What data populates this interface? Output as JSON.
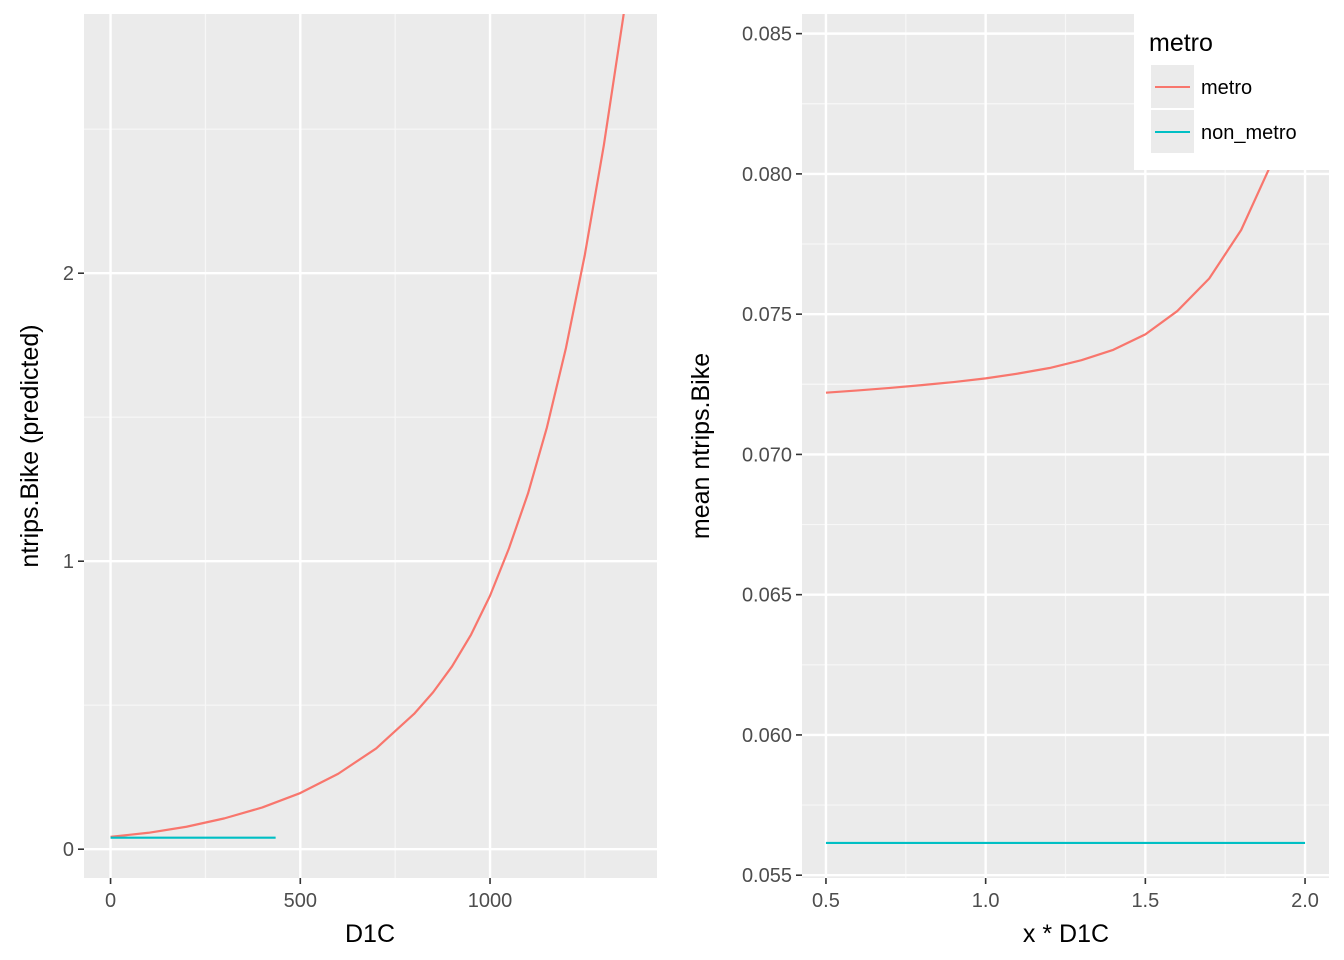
{
  "chart_data": [
    {
      "type": "line",
      "xlabel": "D1C",
      "ylabel": "ntrips.Bike (predicted)",
      "xlim": [
        -70,
        1440
      ],
      "ylim": [
        -0.1,
        2.9
      ],
      "x_ticks": [
        0,
        500,
        1000
      ],
      "x_tick_labels": [
        "0",
        "500",
        "1000"
      ],
      "y_ticks": [
        0,
        1,
        2
      ],
      "y_tick_labels": [
        "0",
        "1",
        "2"
      ],
      "grid": true,
      "series": [
        {
          "name": "metro",
          "color": "#F8766D",
          "x": [
            0,
            100,
            200,
            300,
            400,
            500,
            600,
            700,
            800,
            850,
            900,
            950,
            1000,
            1050,
            1100,
            1150,
            1200,
            1250,
            1300,
            1350,
            1370
          ],
          "y": [
            0.043,
            0.057,
            0.078,
            0.107,
            0.145,
            0.195,
            0.262,
            0.35,
            0.47,
            0.545,
            0.635,
            0.745,
            0.88,
            1.045,
            1.235,
            1.465,
            1.74,
            2.065,
            2.445,
            2.88,
            3.06
          ]
        },
        {
          "name": "non_metro",
          "color": "#00BFC4",
          "x": [
            0,
            435
          ],
          "y": [
            0.04,
            0.04
          ]
        }
      ]
    },
    {
      "type": "line",
      "xlabel": "x * D1C",
      "ylabel": "mean ntrips.Bike",
      "xlim": [
        0.425,
        2.075
      ],
      "ylim": [
        0.0549,
        0.0857
      ],
      "x_ticks": [
        0.5,
        1.0,
        1.5,
        2.0
      ],
      "x_tick_labels": [
        "0.5",
        "1.0",
        "1.5",
        "2.0"
      ],
      "y_ticks": [
        0.055,
        0.06,
        0.065,
        0.07,
        0.075,
        0.08,
        0.085
      ],
      "y_tick_labels": [
        "0.055",
        "0.060",
        "0.065",
        "0.070",
        "0.075",
        "0.080",
        "0.085"
      ],
      "grid": true,
      "series": [
        {
          "name": "metro",
          "color": "#F8766D",
          "x": [
            0.5,
            0.6,
            0.7,
            0.8,
            0.9,
            1.0,
            1.1,
            1.2,
            1.3,
            1.4,
            1.5,
            1.6,
            1.7,
            1.8,
            1.9,
            2.0
          ],
          "y": [
            0.0722,
            0.07228,
            0.07237,
            0.07247,
            0.07258,
            0.07271,
            0.07288,
            0.07308,
            0.07336,
            0.07373,
            0.07428,
            0.07511,
            0.07627,
            0.078,
            0.0805,
            0.0842
          ]
        },
        {
          "name": "non_metro",
          "color": "#00BFC4",
          "x": [
            0.5,
            2.0
          ],
          "y": [
            0.05615,
            0.05615
          ]
        }
      ]
    }
  ],
  "legend": {
    "title": "metro",
    "placement": "top-right",
    "entries": [
      {
        "label": "metro",
        "color": "#F8766D"
      },
      {
        "label": "non_metro",
        "color": "#00BFC4"
      }
    ]
  }
}
